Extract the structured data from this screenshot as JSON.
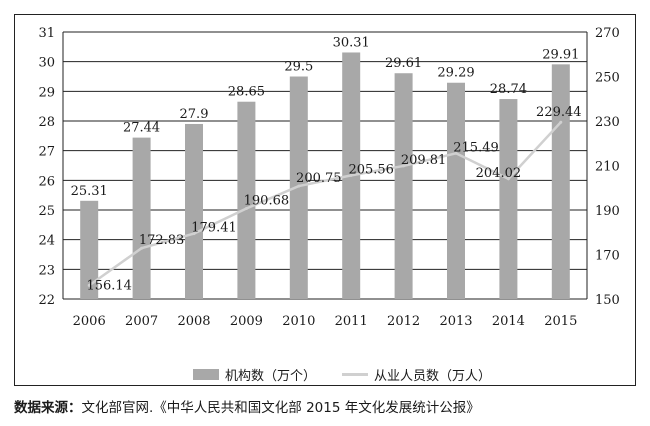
{
  "chart_data": {
    "type": "bar",
    "categories": [
      "2006",
      "2007",
      "2008",
      "2009",
      "2010",
      "2011",
      "2012",
      "2013",
      "2014",
      "2015"
    ],
    "series": [
      {
        "name": "机构数（万个）",
        "type": "bar",
        "axis": "left",
        "values": [
          25.31,
          27.44,
          27.9,
          28.65,
          29.5,
          30.31,
          29.61,
          29.29,
          28.74,
          29.91
        ],
        "labels": [
          "25.31",
          "27.44",
          "27.9",
          "28.65",
          "29.5",
          "30.31",
          "29.61",
          "29.29",
          "28.74",
          "29.91"
        ],
        "color": "#a8a8a8"
      },
      {
        "name": "从业人员数（万人）",
        "type": "line",
        "axis": "right",
        "values": [
          156.14,
          172.83,
          179.41,
          190.68,
          200.75,
          205.56,
          209.81,
          215.49,
          204.02,
          229.44
        ],
        "labels": [
          "156.14",
          "172.83",
          "179.41",
          "190.68",
          "200.75",
          "205.56",
          "209.81",
          "215.49",
          "204.02",
          "229.44"
        ],
        "color": "#d0d0d0"
      }
    ],
    "y_left": {
      "min": 22,
      "max": 31,
      "ticks": [
        "22",
        "23",
        "24",
        "25",
        "26",
        "27",
        "28",
        "29",
        "30",
        "31"
      ]
    },
    "y_right": {
      "min": 150,
      "max": 270,
      "ticks": [
        "150",
        "170",
        "190",
        "210",
        "230",
        "250",
        "270"
      ]
    },
    "grid": "horizontal",
    "legend": "bottom"
  },
  "source": {
    "label": "数据来源：",
    "text": "文化部官网.《中华人民共和国文化部 2015 年文化发展统计公报》"
  }
}
